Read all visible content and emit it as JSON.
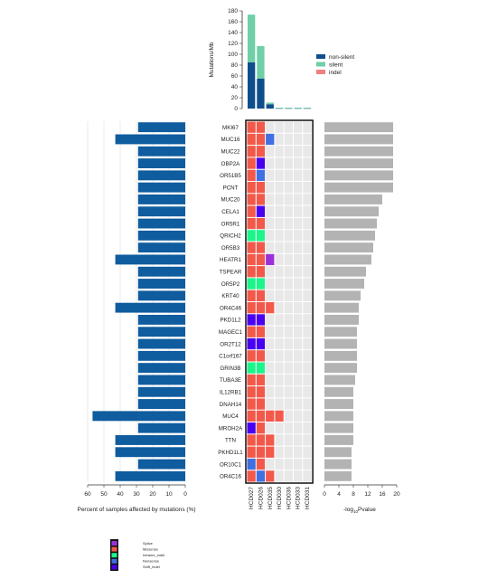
{
  "chart_data": {
    "type": "oncoprint",
    "genes": [
      "MKI67",
      "MUC16",
      "MUC22",
      "OBP2A",
      "OR51B5",
      "PCNT",
      "MUC20",
      "CELA1",
      "OR5R1",
      "QRICH2",
      "OR5B3",
      "HEATR1",
      "TSPEAR",
      "OR5P2",
      "KRT40",
      "OR4C46",
      "PKD1L2",
      "MAGEC1",
      "OR2T12",
      "C1orf167",
      "GRIN3B",
      "TUBA3E",
      "IL12RB1",
      "DNAH14",
      "MUC4",
      "MROH2A",
      "TTN",
      "PKHD1L1",
      "OR10C1",
      "OR4C16"
    ],
    "samples": [
      "HCD027",
      "HCD026",
      "HCD035",
      "HCD030",
      "HCD036",
      "HCD033",
      "HCD031"
    ],
    "percent_samples_affected": [
      29,
      43,
      29,
      29,
      29,
      29,
      29,
      29,
      29,
      29,
      29,
      43,
      29,
      29,
      29,
      43,
      29,
      29,
      29,
      29,
      29,
      29,
      29,
      29,
      57,
      29,
      43,
      43,
      29,
      43
    ],
    "neg_log10_pvalue": [
      19,
      19,
      19,
      19,
      19,
      19,
      16,
      15,
      14.5,
      14,
      13.5,
      13,
      11.5,
      11,
      10,
      9.5,
      9.5,
      9,
      9,
      9,
      9,
      8.5,
      8,
      8,
      8,
      8,
      8,
      7.5,
      7.5,
      7.5
    ],
    "mutation_matrix": [
      [
        "Missense",
        "Missense",
        "",
        "",
        "",
        "",
        ""
      ],
      [
        "Missense",
        "Missense",
        "Nonsense",
        "",
        "",
        "",
        ""
      ],
      [
        "Missense",
        "Missense",
        "",
        "",
        "",
        "",
        ""
      ],
      [
        "Missense",
        "Shift_indel",
        "",
        "",
        "",
        "",
        ""
      ],
      [
        "Missense",
        "Nonsense",
        "",
        "",
        "",
        "",
        ""
      ],
      [
        "Missense",
        "Missense",
        "",
        "",
        "",
        "",
        ""
      ],
      [
        "Missense",
        "Missense",
        "",
        "",
        "",
        "",
        ""
      ],
      [
        "Missense",
        "Shift_indel",
        "",
        "",
        "",
        "",
        ""
      ],
      [
        "Missense",
        "Missense",
        "",
        "",
        "",
        "",
        ""
      ],
      [
        "Inframe_indel",
        "Inframe_indel",
        "",
        "",
        "",
        "",
        ""
      ],
      [
        "Missense",
        "Missense",
        "",
        "",
        "",
        "",
        ""
      ],
      [
        "Missense",
        "Missense",
        "Splice",
        "",
        "",
        "",
        ""
      ],
      [
        "Missense",
        "Missense",
        "",
        "",
        "",
        "",
        ""
      ],
      [
        "Inframe_indel",
        "Inframe_indel",
        "",
        "",
        "",
        "",
        ""
      ],
      [
        "Missense",
        "Missense",
        "",
        "",
        "",
        "",
        ""
      ],
      [
        "Missense",
        "Missense",
        "Missense",
        "",
        "",
        "",
        ""
      ],
      [
        "Shift_indel",
        "Shift_indel",
        "",
        "",
        "",
        "",
        ""
      ],
      [
        "Missense",
        "Missense",
        "",
        "",
        "",
        "",
        ""
      ],
      [
        "Shift_indel",
        "Shift_indel",
        "",
        "",
        "",
        "",
        ""
      ],
      [
        "Missense",
        "Missense",
        "",
        "",
        "",
        "",
        ""
      ],
      [
        "Inframe_indel",
        "Inframe_indel",
        "",
        "",
        "",
        "",
        ""
      ],
      [
        "Missense",
        "Missense",
        "",
        "",
        "",
        "",
        ""
      ],
      [
        "Missense",
        "Missense",
        "",
        "",
        "",
        "",
        ""
      ],
      [
        "Missense",
        "Missense",
        "",
        "",
        "",
        "",
        ""
      ],
      [
        "Missense",
        "Missense",
        "Missense",
        "Missense",
        "",
        "",
        ""
      ],
      [
        "Shift_indel",
        "Missense",
        "",
        "",
        "",
        "",
        ""
      ],
      [
        "Missense",
        "Missense",
        "Missense",
        "",
        "",
        "",
        ""
      ],
      [
        "Missense",
        "Missense",
        "Missense",
        "",
        "",
        "",
        ""
      ],
      [
        "Nonsense",
        "Missense",
        "",
        "",
        "",
        "",
        ""
      ],
      [
        "Missense",
        "Nonsense",
        "Missense",
        "",
        "",
        "",
        ""
      ]
    ],
    "top_bar": {
      "ylabel": "Mutations/Mb",
      "ylim": [
        0,
        180
      ],
      "yticks": [
        0,
        20,
        40,
        60,
        80,
        100,
        120,
        140,
        160,
        180
      ],
      "series": [
        {
          "name": "non-silent",
          "color": "#0f4e8c",
          "values": [
            85,
            55,
            8,
            1,
            1,
            1,
            1
          ]
        },
        {
          "name": "silent",
          "color": "#6fcfa6",
          "values": [
            88,
            60,
            3,
            0.5,
            0.5,
            0.5,
            0.5
          ]
        },
        {
          "name": "indel",
          "color": "#f08080",
          "values": [
            0,
            0,
            0,
            0,
            0,
            0,
            0
          ]
        }
      ]
    },
    "left_bar": {
      "xlabel": "Percent of samples affected by mutations (%)",
      "xticks": [
        60,
        50,
        40,
        30,
        20,
        10,
        0
      ],
      "xlim": [
        0,
        60
      ],
      "color": "#0f5c9e"
    },
    "right_bar": {
      "xlabel_prefix": "-log",
      "xlabel_sub": "10",
      "xlabel_suffix": "Pvalue",
      "xticks": [
        0,
        4,
        8,
        12,
        16,
        20
      ],
      "xlim": [
        0,
        20
      ],
      "color": "#b3b3b3"
    },
    "mutation_legend": [
      {
        "name": "Splice",
        "color": "#9b30d9"
      },
      {
        "name": "Missense",
        "color": "#f2594b"
      },
      {
        "name": "Inframe_indel",
        "color": "#1cf58a"
      },
      {
        "name": "Nonsense",
        "color": "#3f6fe0"
      },
      {
        "name": "Shift_indel",
        "color": "#4a00f0"
      }
    ],
    "empty_cell_color": "#e8e8e8"
  }
}
